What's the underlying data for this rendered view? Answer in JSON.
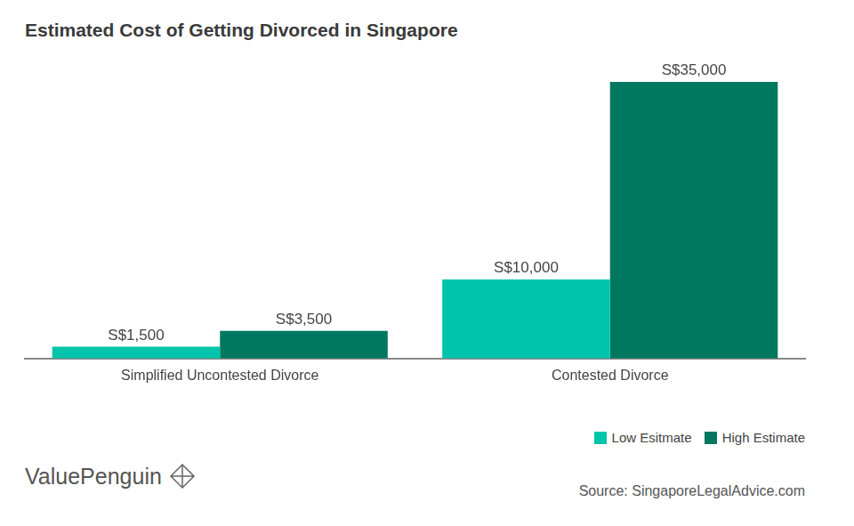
{
  "chart_data": {
    "type": "bar",
    "title": "Estimated Cost of Getting Divorced in Singapore",
    "categories": [
      "Simplified Uncontested Divorce",
      "Contested Divorce"
    ],
    "series": [
      {
        "name": "Low Esitmate",
        "color": "#00c4ab",
        "values": [
          1500,
          10000
        ],
        "value_labels": [
          "S$1,500",
          "S$10,000"
        ]
      },
      {
        "name": "High Estimate",
        "color": "#00785f",
        "values": [
          3500,
          35000
        ],
        "value_labels": [
          "S$3,500",
          "S$35,000"
        ]
      }
    ],
    "ylim": [
      0,
      35000
    ],
    "grid": false,
    "legend": "lower right",
    "data_labels": true,
    "tick_labels": "x",
    "annotations": [
      "ValuePenguin",
      "Source: SingaporeLegalAdvice.com"
    ]
  }
}
